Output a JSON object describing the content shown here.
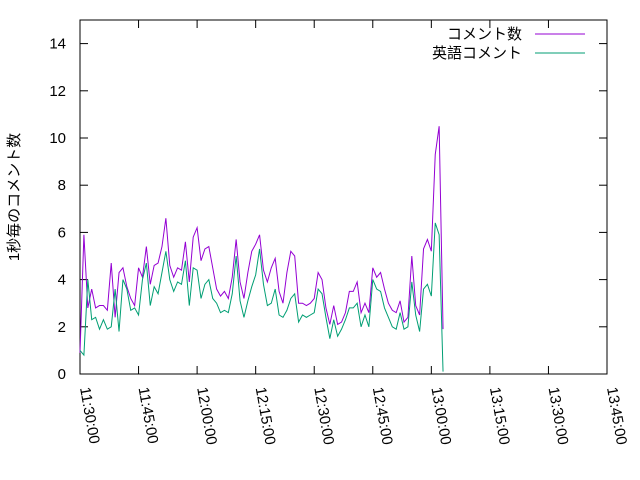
{
  "chart_data": {
    "type": "line",
    "title": "",
    "xlabel": "",
    "ylabel": "1秒毎のコメント数",
    "x_ticks": [
      "11:30:00",
      "11:45:00",
      "12:00:00",
      "12:15:00",
      "12:30:00",
      "12:45:00",
      "13:00:00",
      "13:15:00",
      "13:30:00",
      "13:45:00"
    ],
    "y_ticks": [
      "0",
      "2",
      "4",
      "6",
      "8",
      "10",
      "12",
      "14"
    ],
    "xlim": [
      "11:30:00",
      "13:45:00"
    ],
    "ylim": [
      0,
      15
    ],
    "x_step_seconds": 60,
    "grid": false,
    "legend_position": "top-right",
    "series": [
      {
        "name": "コメント数",
        "color": "#9400d3",
        "values": [
          0.9,
          5.9,
          2.8,
          3.6,
          2.8,
          2.9,
          2.9,
          2.7,
          4.7,
          2.4,
          4.3,
          4.5,
          3.7,
          3.2,
          2.9,
          4.5,
          4.1,
          5.4,
          3.8,
          4.6,
          4.7,
          5.4,
          6.6,
          4.6,
          4.1,
          4.5,
          4.4,
          5.6,
          3.9,
          5.8,
          6.2,
          4.8,
          5.3,
          5.4,
          4.5,
          3.6,
          3.3,
          3.5,
          3.2,
          4.1,
          5.7,
          3.9,
          3.2,
          4.3,
          5.2,
          5.5,
          5.9,
          4.4,
          3.9,
          4.5,
          4.9,
          3.5,
          3.0,
          4.3,
          5.2,
          5.0,
          3.0,
          3.0,
          2.9,
          3.0,
          3.2,
          4.3,
          4.0,
          2.8,
          2.1,
          2.9,
          2.1,
          2.2,
          2.6,
          3.5,
          3.5,
          3.9,
          2.6,
          3.0,
          2.6,
          4.5,
          4.1,
          4.3,
          3.6,
          3.0,
          2.7,
          2.6,
          3.1,
          2.2,
          2.4,
          5.0,
          2.9,
          2.5,
          5.3,
          5.7,
          5.2,
          9.3,
          10.5,
          1.9
        ]
      },
      {
        "name": "英語コメント",
        "color": "#009e73",
        "values": [
          1.0,
          0.8,
          4.0,
          2.3,
          2.4,
          1.9,
          2.3,
          1.9,
          2.0,
          3.6,
          1.8,
          4.0,
          3.6,
          2.7,
          2.8,
          2.5,
          4.0,
          4.7,
          2.9,
          3.7,
          3.4,
          4.3,
          5.2,
          4.0,
          3.5,
          3.9,
          3.8,
          4.8,
          2.9,
          4.5,
          4.4,
          3.2,
          3.8,
          4.0,
          3.2,
          3.0,
          2.6,
          2.7,
          2.6,
          3.4,
          5.0,
          3.1,
          2.4,
          3.1,
          3.7,
          4.2,
          5.3,
          3.8,
          2.9,
          3.0,
          3.6,
          2.5,
          2.4,
          2.7,
          3.2,
          3.4,
          2.2,
          2.5,
          2.4,
          2.5,
          2.6,
          3.6,
          3.4,
          2.4,
          1.5,
          2.3,
          1.6,
          1.9,
          2.3,
          2.8,
          2.8,
          3.0,
          2.0,
          2.5,
          2.0,
          4.0,
          3.6,
          3.5,
          2.8,
          2.4,
          2.0,
          1.9,
          2.6,
          1.9,
          2.0,
          3.9,
          2.5,
          1.8,
          3.6,
          3.8,
          3.3,
          6.4,
          5.9,
          0.1
        ]
      }
    ]
  }
}
